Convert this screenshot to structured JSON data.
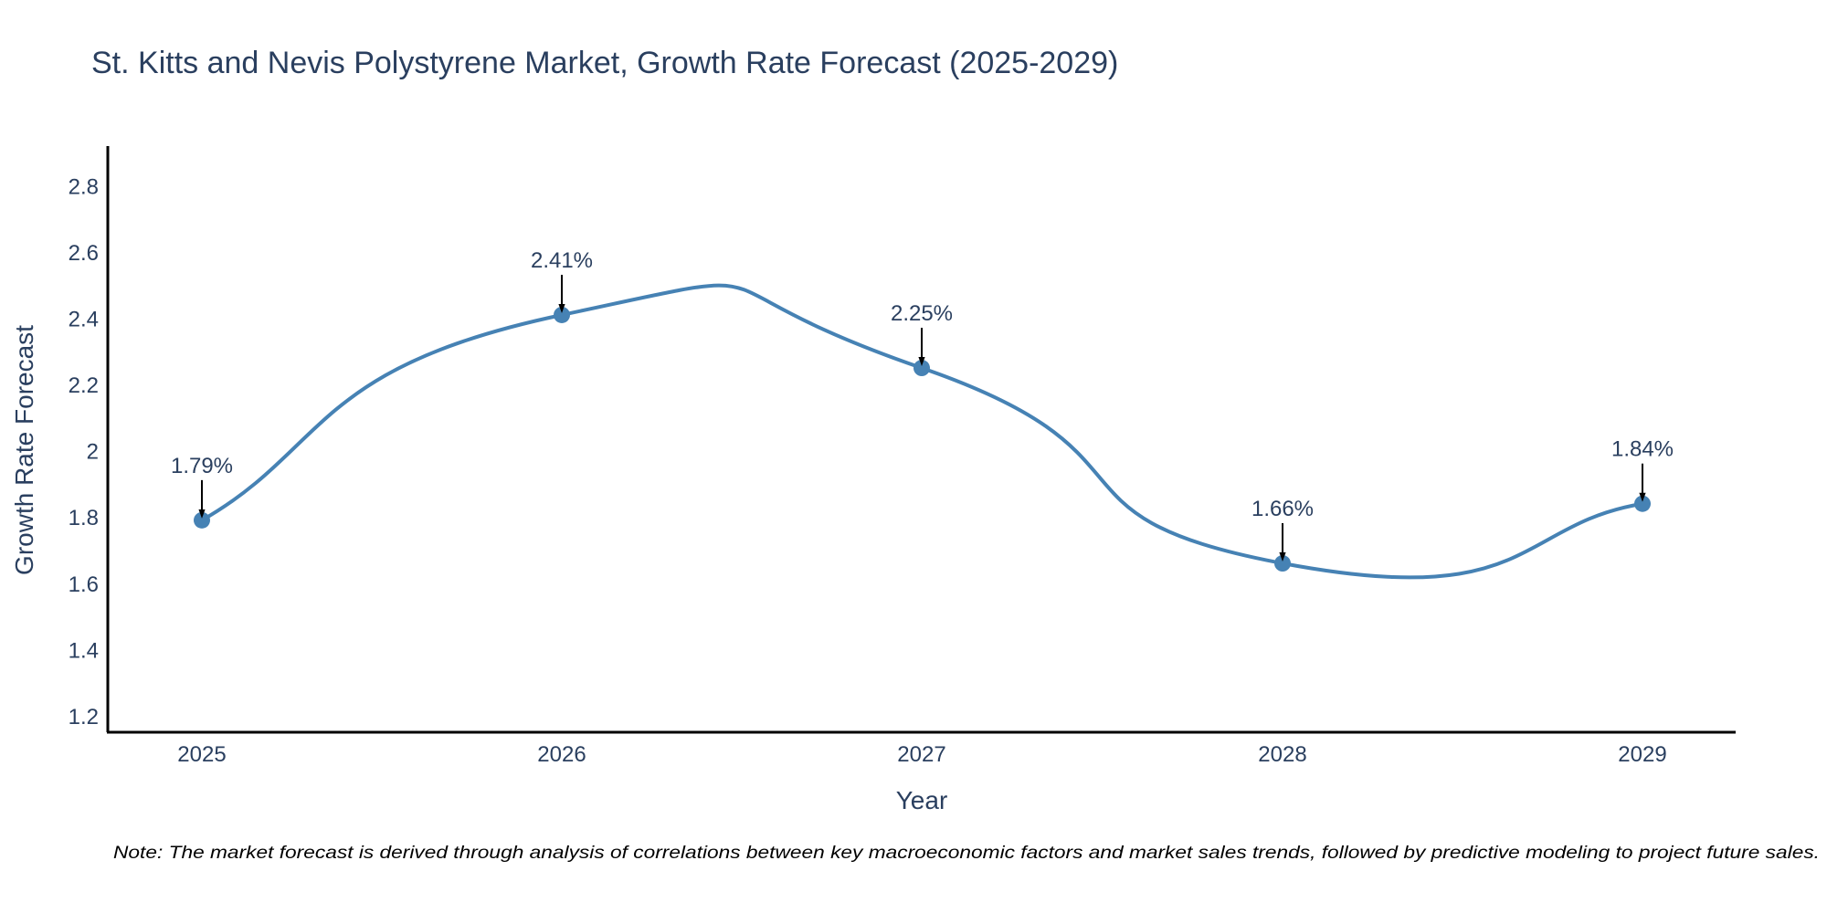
{
  "chart_data": {
    "type": "line",
    "title": "St. Kitts and Nevis Polystyrene Market, Growth Rate Forecast (2025-2029)",
    "xlabel": "Year",
    "ylabel": "Growth Rate Forecast",
    "categories": [
      "2025",
      "2026",
      "2027",
      "2028",
      "2029"
    ],
    "values": [
      1.79,
      2.41,
      2.25,
      1.66,
      1.84
    ],
    "data_labels": [
      "1.79%",
      "2.41%",
      "2.25%",
      "1.66%",
      "1.84%"
    ],
    "yticks": [
      1.2,
      1.4,
      1.6,
      1.8,
      2,
      2.2,
      2.4,
      2.6,
      2.8
    ],
    "ytick_labels": [
      "1.2",
      "1.4",
      "1.6",
      "1.8",
      "2",
      "2.2",
      "2.4",
      "2.6",
      "2.8"
    ],
    "ylim": [
      1.15,
      2.92
    ],
    "grid": false,
    "line_shape": "spline",
    "colors": {
      "line": "#4682b4",
      "marker": "#4682b4",
      "text": "#2a3f5f",
      "axis": "#000000",
      "arrow": "#000000"
    },
    "note": "Note: The market forecast is derived through analysis of correlations between key macroeconomic factors and market sales trends, followed by predictive modeling to project future sales."
  }
}
